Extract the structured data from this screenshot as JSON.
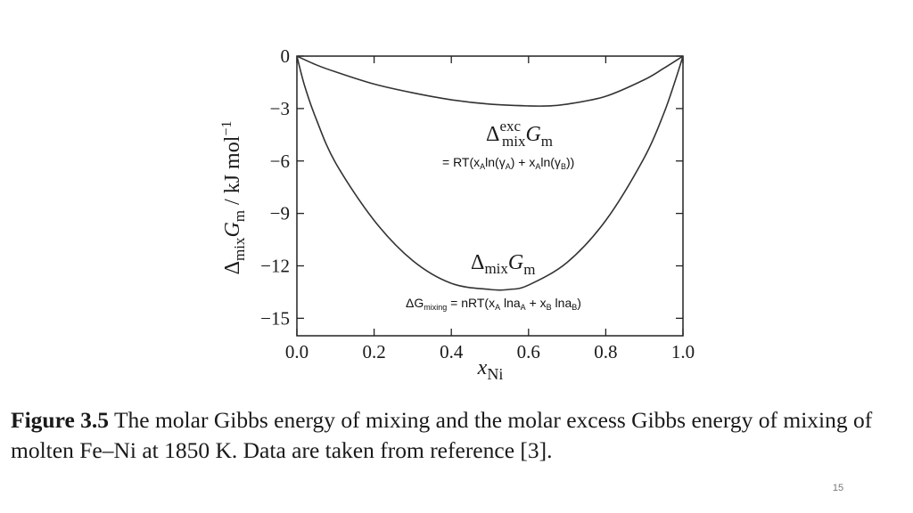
{
  "chart_data": {
    "type": "line",
    "xlabel": "x",
    "xlabel_sub": "Ni",
    "ylabel": "Δ",
    "ylabel_sub_mix": "mix",
    "ylabel_G": "G",
    "ylabel_sub_m": "m",
    "ylabel_units": " / kJ mol",
    "ylabel_exp": "−1",
    "xlim": [
      0.0,
      1.0
    ],
    "ylim": [
      -16,
      0
    ],
    "xticks": [
      "0.0",
      "0.2",
      "0.4",
      "0.6",
      "0.8",
      "1.0"
    ],
    "yticks": [
      "0",
      "−3",
      "−6",
      "−9",
      "−12",
      "−15"
    ],
    "series": [
      {
        "name": "ΔexcmixGm",
        "x": [
          0,
          0.05,
          0.1,
          0.2,
          0.3,
          0.4,
          0.5,
          0.6,
          0.65,
          0.7,
          0.8,
          0.9,
          0.95,
          1.0
        ],
        "y": [
          0,
          -0.5,
          -0.9,
          -1.6,
          -2.1,
          -2.5,
          -2.75,
          -2.85,
          -2.85,
          -2.75,
          -2.3,
          -1.35,
          -0.7,
          0
        ]
      },
      {
        "name": "ΔmixGm",
        "x": [
          0,
          0.02,
          0.05,
          0.1,
          0.2,
          0.3,
          0.4,
          0.5,
          0.55,
          0.6,
          0.7,
          0.8,
          0.9,
          0.95,
          0.98,
          1.0
        ],
        "y": [
          0,
          -1.7,
          -3.6,
          -6.1,
          -9.4,
          -11.7,
          -13.0,
          -13.35,
          -13.35,
          -13.1,
          -11.8,
          -9.4,
          -5.8,
          -3.3,
          -1.4,
          0
        ]
      }
    ],
    "annotations": {
      "exc_delta": "Δ",
      "exc_sup": "exc",
      "exc_sub": "mix",
      "exc_G": "G",
      "exc_m": "m",
      "exc_formula": {
        "p1": "= RT(x",
        "s1": "A",
        "p2": "ln(γ",
        "s2": "A",
        "p3": ") + x",
        "s3": "A",
        "p4": "ln(γ",
        "s4": "B",
        "p5": "))"
      },
      "mix_delta": "Δ",
      "mix_sub": "mix",
      "mix_G": "G",
      "mix_m": "m",
      "mix_formula": {
        "p1": "ΔG",
        "s1": "mixing",
        "p2": " = nRT(x",
        "s2": "A",
        "p3": " lna",
        "s3": "A",
        "p4": " + x",
        "s4": "B",
        "p5": " lna",
        "s5": "B",
        "p6": ")"
      }
    }
  },
  "caption": {
    "label": "Figure 3.5",
    "text": "The molar Gibbs energy of mixing and the molar excess Gibbs energy of mixing of molten Fe–Ni at 1850 K. Data are taken from reference [3]."
  },
  "page_number": "15"
}
